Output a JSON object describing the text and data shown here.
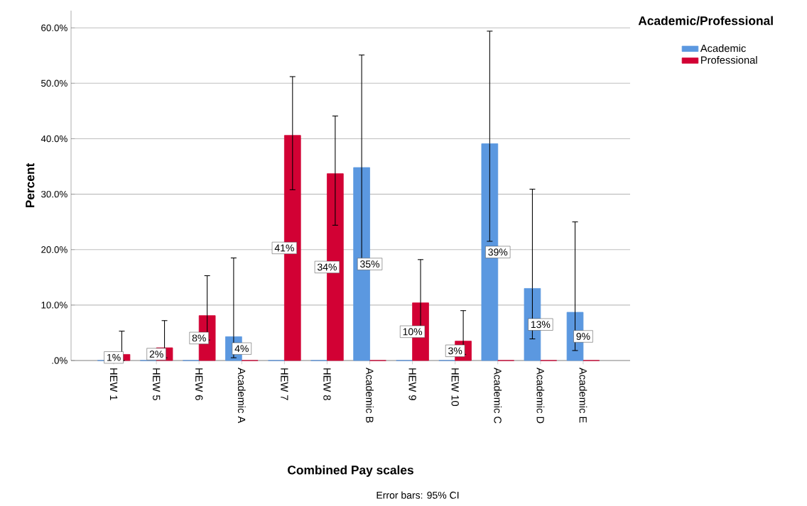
{
  "chart_data": {
    "type": "bar",
    "xlabel": "Combined Pay scales",
    "ylabel": "Percent",
    "legend_title": "Academic/Professional",
    "categories": [
      "HEW 1",
      "HEW 5",
      "HEW 6",
      "Academic A",
      "HEW 7",
      "HEW 8",
      "Academic B",
      "HEW 9",
      "HEW 10",
      "Academic C",
      "Academic D",
      "Academic E"
    ],
    "series": [
      {
        "name": "Academic",
        "color": "#5b98e0",
        "values": [
          0,
          0,
          0,
          4.3,
          0,
          0,
          34.8,
          0,
          0,
          39.1,
          13.0,
          8.7
        ],
        "errors": [
          null,
          null,
          null,
          [
            0.5,
            18.5
          ],
          null,
          null,
          [
            18.0,
            55.1
          ],
          null,
          null,
          [
            21.5,
            59.4
          ],
          [
            3.9,
            30.9
          ],
          [
            1.8,
            25.0
          ]
        ],
        "value_labels": [
          null,
          null,
          null,
          "4%",
          null,
          null,
          "35%",
          null,
          null,
          "39%",
          "13%",
          "9%"
        ]
      },
      {
        "name": "Professional",
        "color": "#d20134",
        "values": [
          1.1,
          2.3,
          8.1,
          0,
          40.6,
          33.7,
          0,
          10.4,
          3.5,
          0,
          0,
          0
        ],
        "errors": [
          [
            0.0,
            5.3
          ],
          [
            0.5,
            7.2
          ],
          [
            3.7,
            15.3
          ],
          null,
          [
            30.8,
            51.2
          ],
          [
            24.4,
            44.1
          ],
          null,
          [
            5.3,
            18.2
          ],
          [
            1.1,
            9.0
          ],
          null,
          null,
          null
        ],
        "value_labels": [
          "1%",
          "2%",
          "8%",
          null,
          "41%",
          "34%",
          null,
          "10%",
          "3%",
          null,
          null,
          null
        ]
      }
    ],
    "ylim": [
      0,
      63.1
    ],
    "yticks": [
      {
        "value": 0,
        "label": ".0%"
      },
      {
        "value": 10,
        "label": "10.0%"
      },
      {
        "value": 20,
        "label": "20.0%"
      },
      {
        "value": 30,
        "label": "30.0%"
      },
      {
        "value": 40,
        "label": "40.0%"
      },
      {
        "value": 50,
        "label": "50.0%"
      },
      {
        "value": 60,
        "label": "60.0%"
      }
    ],
    "grid": "y",
    "legend": "top right",
    "annotations": [
      "Error bars: 95% CI"
    ]
  }
}
